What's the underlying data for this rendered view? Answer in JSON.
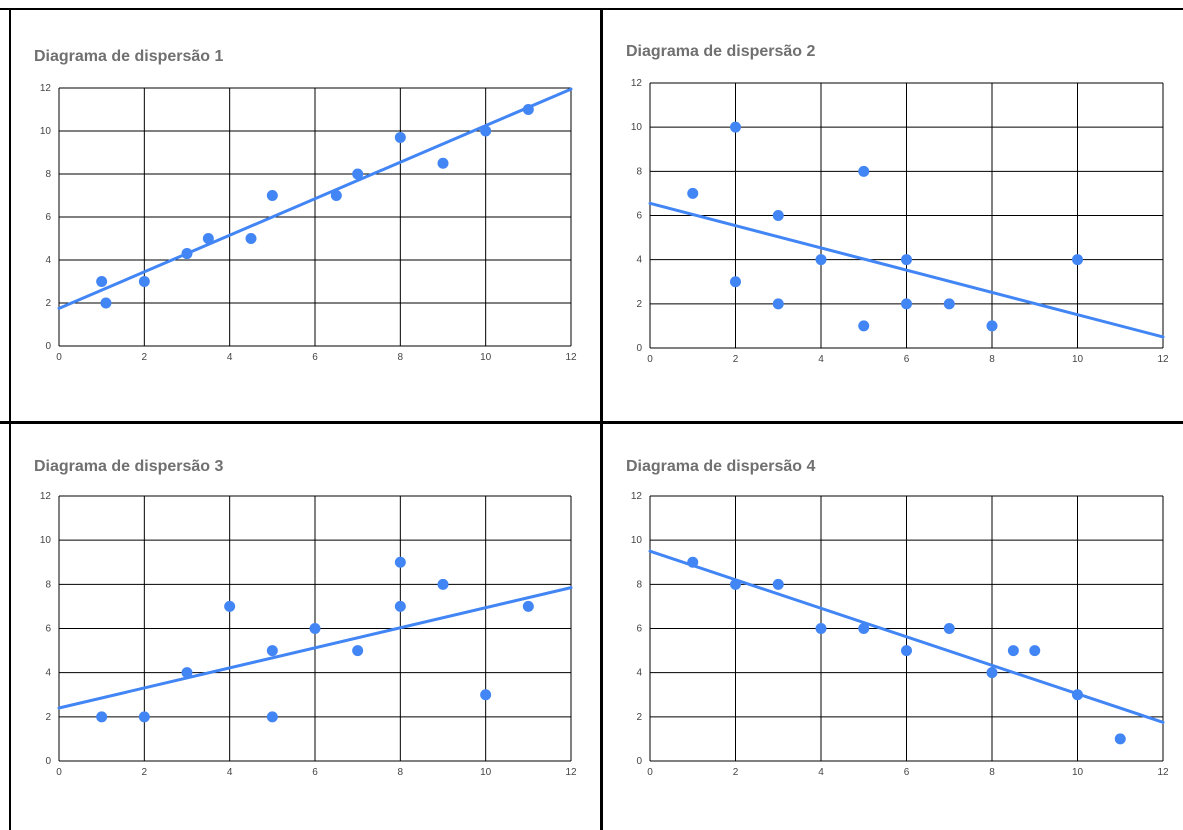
{
  "style": {
    "point_color": "#4285f4",
    "trend_color": "#4285f4",
    "grid_color": "#000000",
    "title_color": "#707070"
  },
  "chart_data": [
    {
      "type": "scatter",
      "title": "Diagrama de dispersão 1",
      "xlim": [
        0,
        12
      ],
      "ylim": [
        0,
        12
      ],
      "xticks": [
        "0",
        "2",
        "4",
        "6",
        "8",
        "10",
        "12"
      ],
      "yticks": [
        "0",
        "2",
        "4",
        "6",
        "8",
        "10",
        "12"
      ],
      "grid": true,
      "x": [
        1,
        1.1,
        2,
        3,
        3.5,
        4.5,
        5,
        6.5,
        7,
        8,
        9,
        10,
        11
      ],
      "y": [
        3,
        2,
        3,
        4.3,
        5,
        5,
        7,
        7,
        8,
        9.7,
        8.5,
        10,
        11
      ],
      "trendline": {
        "type": "linear",
        "x": [
          0,
          12
        ],
        "y": [
          1.75,
          11.95
        ]
      }
    },
    {
      "type": "scatter",
      "title": "Diagrama de dispersão 2",
      "xlim": [
        0,
        12
      ],
      "ylim": [
        0,
        12
      ],
      "xticks": [
        "0",
        "2",
        "4",
        "6",
        "8",
        "10",
        "12"
      ],
      "yticks": [
        "0",
        "2",
        "4",
        "6",
        "8",
        "10",
        "12"
      ],
      "grid": true,
      "x": [
        1,
        2,
        2,
        3,
        3,
        4,
        5,
        5,
        6,
        6,
        7,
        8,
        10
      ],
      "y": [
        7,
        10,
        3,
        6,
        2,
        4,
        8,
        1,
        4,
        2,
        2,
        1,
        4
      ],
      "trendline": {
        "type": "linear",
        "x": [
          0,
          12
        ],
        "y": [
          6.55,
          0.5
        ]
      }
    },
    {
      "type": "scatter",
      "title": "Diagrama de dispersão 3",
      "xlim": [
        0,
        12
      ],
      "ylim": [
        0,
        12
      ],
      "xticks": [
        "0",
        "2",
        "4",
        "6",
        "8",
        "10",
        "12"
      ],
      "yticks": [
        "0",
        "2",
        "4",
        "6",
        "8",
        "10",
        "12"
      ],
      "grid": true,
      "x": [
        1,
        2,
        3,
        4,
        5,
        5,
        6,
        7,
        8,
        8,
        9,
        10,
        11
      ],
      "y": [
        2,
        2,
        4,
        7,
        5,
        2,
        6,
        5,
        9,
        7,
        8,
        3,
        7
      ],
      "trendline": {
        "type": "linear",
        "x": [
          0,
          12
        ],
        "y": [
          2.4,
          7.85
        ]
      }
    },
    {
      "type": "scatter",
      "title": "Diagrama de dispersão 4",
      "xlim": [
        0,
        12
      ],
      "ylim": [
        0,
        12
      ],
      "xticks": [
        "0",
        "2",
        "4",
        "6",
        "8",
        "10",
        "12"
      ],
      "yticks": [
        "0",
        "2",
        "4",
        "6",
        "8",
        "10",
        "12"
      ],
      "grid": true,
      "x": [
        1,
        2,
        3,
        4,
        5,
        6,
        7,
        8,
        8.5,
        9,
        10,
        11
      ],
      "y": [
        9,
        8,
        8,
        6,
        6,
        5,
        6,
        4,
        5,
        5,
        3,
        1
      ],
      "trendline": {
        "type": "linear",
        "x": [
          0,
          12
        ],
        "y": [
          9.5,
          1.75
        ]
      }
    }
  ]
}
